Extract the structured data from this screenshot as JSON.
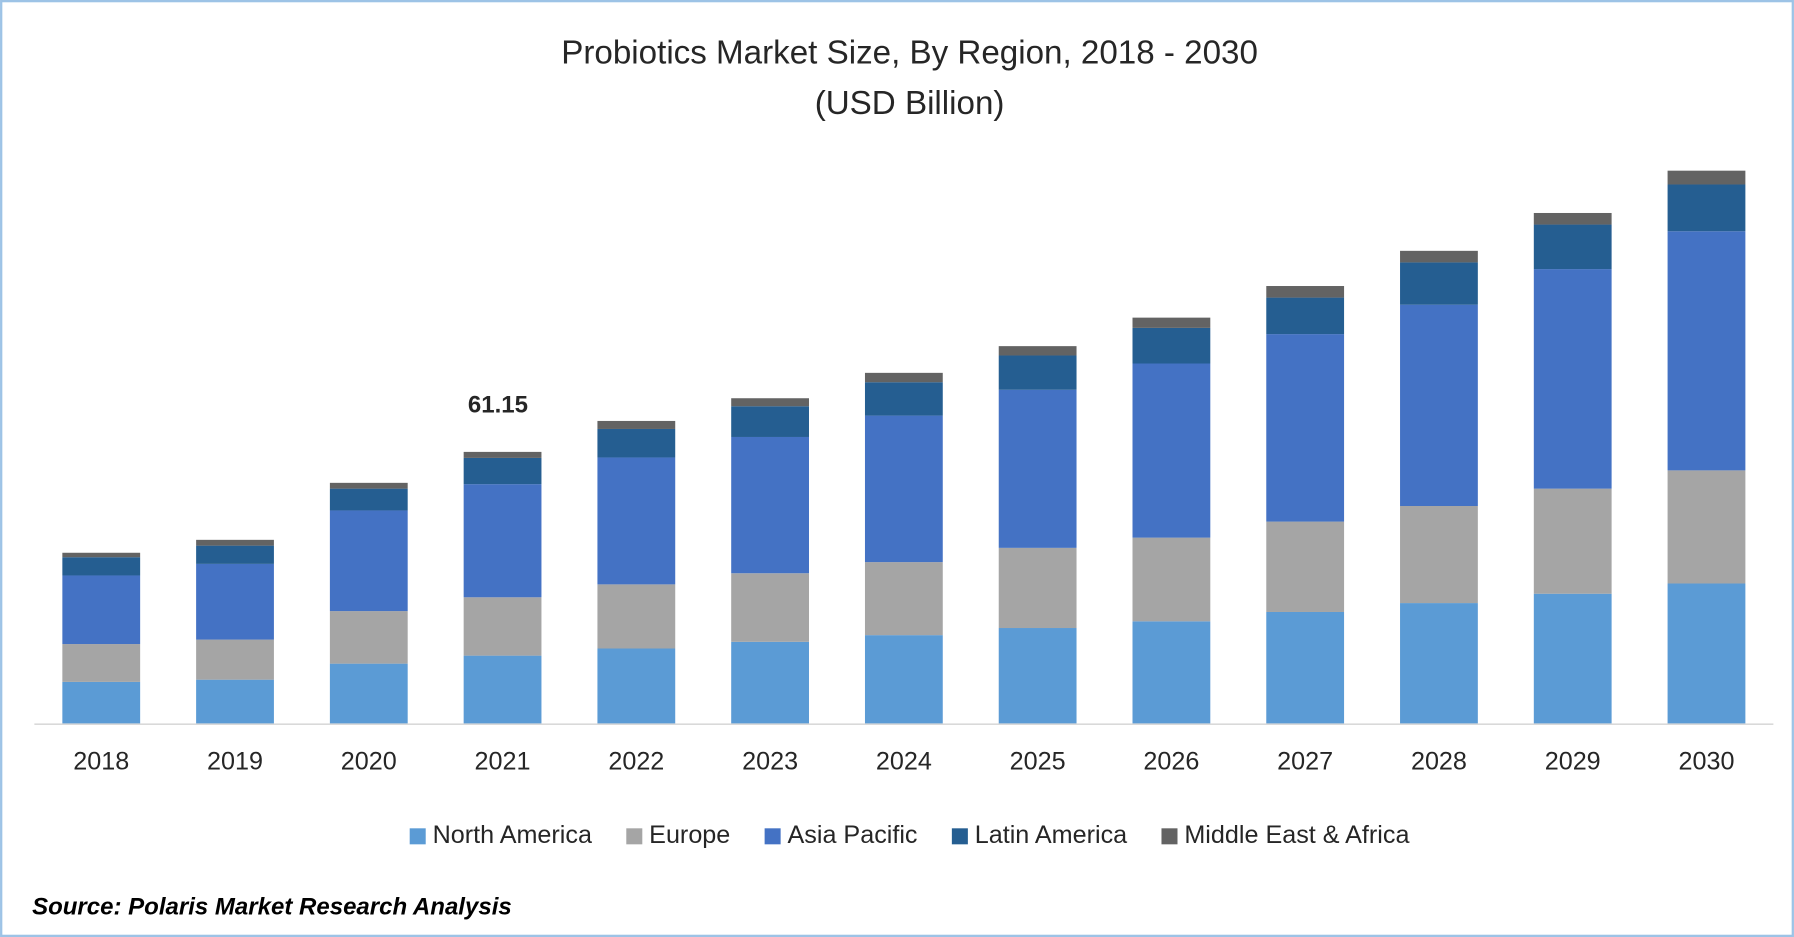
{
  "chart_data": {
    "type": "stacked_bar",
    "title": "Probiotics Market Size, By Region, 2018 - 2030",
    "subtitle": "(USD Billion)",
    "source": "Source: Polaris  Market Research Analysis",
    "categories": [
      "2018",
      "2019",
      "2020",
      "2021",
      "2022",
      "2023",
      "2024",
      "2025",
      "2026",
      "2027",
      "2028",
      "2029",
      "2030"
    ],
    "series": [
      {
        "name": "North America",
        "color": "#5b9bd5",
        "values": [
          9.5,
          10.0,
          13.6,
          15.4,
          17.0,
          18.5,
          20.0,
          21.6,
          23.1,
          25.2,
          27.2,
          29.3,
          31.6
        ]
      },
      {
        "name": "Europe",
        "color": "#a5a5a5",
        "values": [
          8.5,
          9.0,
          11.8,
          13.1,
          14.4,
          15.4,
          16.4,
          18.0,
          18.8,
          20.3,
          21.8,
          23.6,
          25.4
        ]
      },
      {
        "name": "Asia Pacific",
        "color": "#4472c4",
        "values": [
          15.4,
          17.0,
          22.6,
          25.4,
          28.5,
          30.6,
          32.9,
          35.5,
          39.1,
          42.1,
          45.2,
          49.3,
          53.7
        ]
      },
      {
        "name": "Latin America",
        "color": "#255e91",
        "values": [
          4.1,
          4.1,
          4.9,
          5.9,
          6.4,
          6.9,
          7.5,
          7.7,
          8.0,
          8.2,
          9.5,
          10.0,
          10.5
        ]
      },
      {
        "name": "Middle East & Africa",
        "color": "#636363",
        "values": [
          1.0,
          1.3,
          1.3,
          1.35,
          1.8,
          1.8,
          2.1,
          2.1,
          2.3,
          2.6,
          2.6,
          2.6,
          3.1
        ]
      }
    ],
    "annotations": [
      {
        "category": "2021",
        "value": 61.15
      }
    ],
    "ylim": [
      0,
      130
    ],
    "legend": "bottom"
  }
}
